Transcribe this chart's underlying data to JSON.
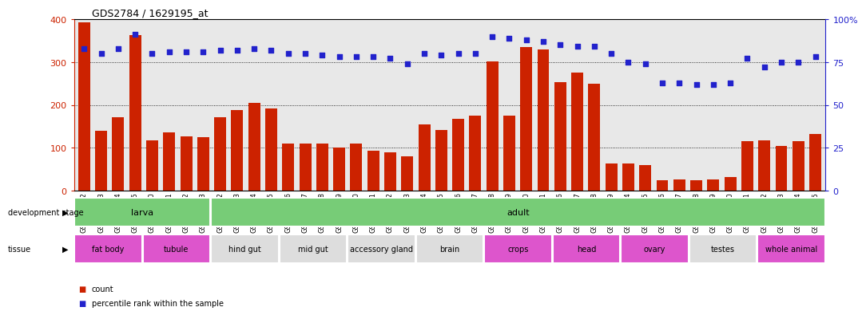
{
  "title": "GDS2784 / 1629195_at",
  "samples": [
    "GSM188092",
    "GSM188093",
    "GSM188094",
    "GSM188095",
    "GSM188100",
    "GSM188101",
    "GSM188102",
    "GSM188103",
    "GSM188072",
    "GSM188073",
    "GSM188074",
    "GSM188075",
    "GSM188076",
    "GSM188077",
    "GSM188078",
    "GSM188079",
    "GSM188080",
    "GSM188081",
    "GSM188082",
    "GSM188083",
    "GSM188084",
    "GSM188085",
    "GSM188086",
    "GSM188087",
    "GSM188088",
    "GSM188089",
    "GSM188090",
    "GSM188091",
    "GSM188096",
    "GSM188097",
    "GSM188098",
    "GSM188099",
    "GSM188104",
    "GSM188105",
    "GSM188106",
    "GSM188107",
    "GSM188108",
    "GSM188109",
    "GSM188110",
    "GSM188111",
    "GSM188112",
    "GSM188113",
    "GSM188114",
    "GSM188115"
  ],
  "counts": [
    393,
    140,
    172,
    363,
    117,
    136,
    126,
    125,
    172,
    188,
    205,
    191,
    110,
    110,
    110,
    100,
    110,
    93,
    90,
    80,
    155,
    142,
    168,
    175,
    302,
    175,
    335,
    330,
    253,
    275,
    250,
    63,
    63,
    60,
    25,
    27,
    25,
    27,
    32,
    115,
    118,
    105,
    115,
    132
  ],
  "percentiles": [
    83,
    80,
    83,
    91,
    80,
    81,
    81,
    81,
    82,
    82,
    83,
    82,
    80,
    80,
    79,
    78,
    78,
    78,
    77,
    74,
    80,
    79,
    80,
    80,
    90,
    89,
    88,
    87,
    85,
    84,
    84,
    80,
    75,
    74,
    63,
    63,
    62,
    62,
    63,
    77,
    72,
    75,
    75,
    78
  ],
  "bar_color": "#cc2200",
  "dot_color": "#2222cc",
  "bg_color": "#e8e8e8",
  "left_ylim": [
    0,
    400
  ],
  "right_ylim": [
    0,
    100
  ],
  "left_yticks": [
    0,
    100,
    200,
    300,
    400
  ],
  "right_yticks": [
    0,
    25,
    50,
    75,
    100
  ],
  "right_yticklabels": [
    "0",
    "25",
    "50",
    "75",
    "100%"
  ],
  "grid_lines": [
    100,
    200,
    300
  ],
  "development_stages": [
    {
      "label": "larva",
      "start": 0,
      "end": 7,
      "color": "#77cc77"
    },
    {
      "label": "adult",
      "start": 8,
      "end": 43,
      "color": "#77cc77"
    }
  ],
  "tissues": [
    {
      "label": "fat body",
      "start": 0,
      "end": 3,
      "color": "#dd55cc"
    },
    {
      "label": "tubule",
      "start": 4,
      "end": 7,
      "color": "#dd55cc"
    },
    {
      "label": "hind gut",
      "start": 8,
      "end": 11,
      "color": "#dddddd"
    },
    {
      "label": "mid gut",
      "start": 12,
      "end": 15,
      "color": "#dddddd"
    },
    {
      "label": "accessory gland",
      "start": 16,
      "end": 19,
      "color": "#dddddd"
    },
    {
      "label": "brain",
      "start": 20,
      "end": 23,
      "color": "#dddddd"
    },
    {
      "label": "crops",
      "start": 24,
      "end": 27,
      "color": "#dd55cc"
    },
    {
      "label": "head",
      "start": 28,
      "end": 31,
      "color": "#dd55cc"
    },
    {
      "label": "ovary",
      "start": 32,
      "end": 35,
      "color": "#dd55cc"
    },
    {
      "label": "testes",
      "start": 36,
      "end": 39,
      "color": "#dddddd"
    },
    {
      "label": "whole animal",
      "start": 40,
      "end": 43,
      "color": "#dd55cc"
    }
  ]
}
